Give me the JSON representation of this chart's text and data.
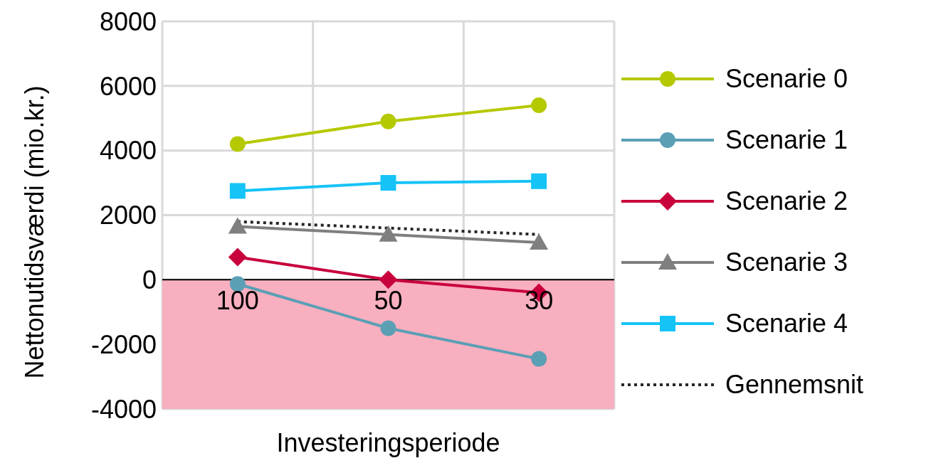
{
  "chart_data": {
    "type": "line",
    "xlabel": "Investeringsperiode",
    "ylabel": "Nettonutidsværdi (mio.kr.)",
    "categories": [
      "100",
      "50",
      "30"
    ],
    "series": [
      {
        "name": "Scenarie 0",
        "color": "#b5c900",
        "marker": "circle",
        "values": [
          4200,
          4900,
          5400
        ]
      },
      {
        "name": "Scenarie 1",
        "color": "#5b9fb5",
        "marker": "circle",
        "values": [
          -130,
          -1500,
          -2450
        ]
      },
      {
        "name": "Scenarie 2",
        "color": "#c8003c",
        "marker": "diamond",
        "values": [
          700,
          0,
          -400
        ]
      },
      {
        "name": "Scenarie 3",
        "color": "#7f7f7f",
        "marker": "triangle",
        "values": [
          1650,
          1400,
          1150
        ]
      },
      {
        "name": "Scenarie 4",
        "color": "#16c3f7",
        "marker": "square",
        "values": [
          2750,
          3000,
          3050
        ]
      },
      {
        "name": "Gennemsnit",
        "color": "#262626",
        "marker": "none",
        "line_style": "dotted",
        "values": [
          1800,
          1600,
          1400
        ]
      }
    ],
    "ylim": [
      -4000,
      8000
    ],
    "yticks": [
      -4000,
      -2000,
      0,
      2000,
      4000,
      6000,
      8000
    ],
    "bands": [
      {
        "axis": "y",
        "from": -4000,
        "to": 0,
        "color": "#f8afbf"
      }
    ],
    "grid": true,
    "legend": "right"
  }
}
